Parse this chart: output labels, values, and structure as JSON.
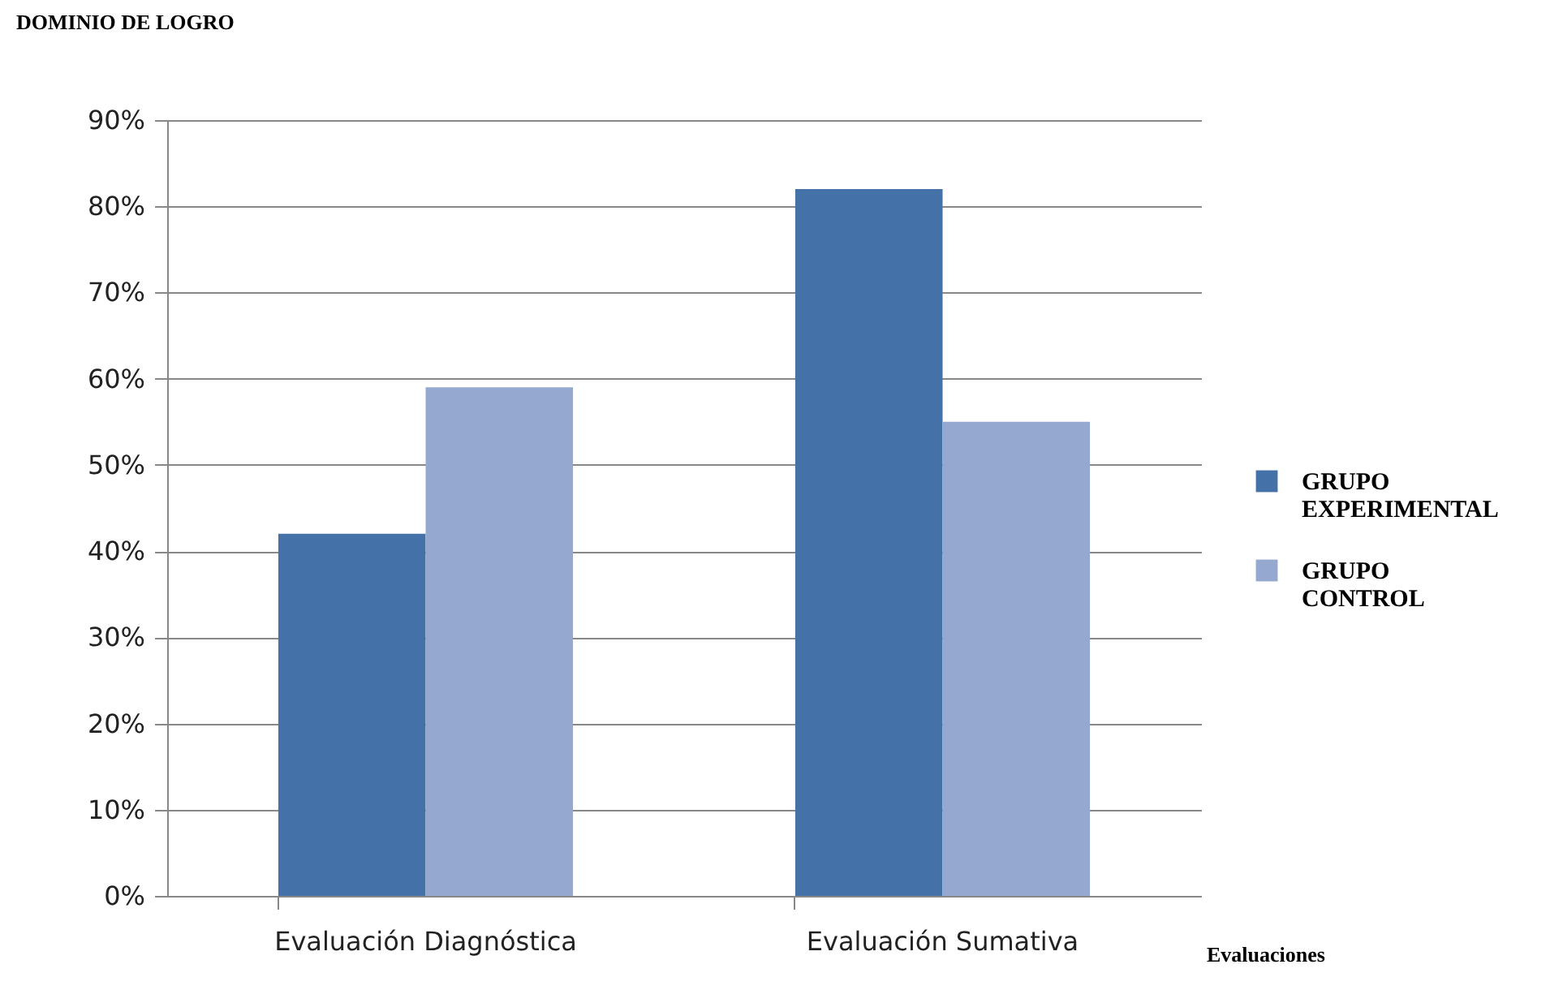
{
  "chart_data": {
    "type": "bar",
    "title": "DOMINIO DE LOGRO",
    "xlabel": "Evaluaciones",
    "categories": [
      "Evaluación Diagnóstica",
      "Evaluación Sumativa"
    ],
    "series": [
      {
        "name": "GRUPO EXPERIMENTAL",
        "color": "#4472a8",
        "values": [
          42,
          82
        ]
      },
      {
        "name": "GRUPO CONTROL",
        "color": "#95a9d0",
        "values": [
          59,
          55
        ]
      }
    ],
    "ylim": [
      0,
      90
    ],
    "yticks": [
      {
        "value": 0,
        "label": "0%"
      },
      {
        "value": 10,
        "label": "10%"
      },
      {
        "value": 20,
        "label": "20%"
      },
      {
        "value": 30,
        "label": "30%"
      },
      {
        "value": 40,
        "label": "40%"
      },
      {
        "value": 50,
        "label": "50%"
      },
      {
        "value": 60,
        "label": "60%"
      },
      {
        "value": 70,
        "label": "70%"
      },
      {
        "value": 80,
        "label": "80%"
      },
      {
        "value": 90,
        "label": "90%"
      }
    ],
    "grid": "y",
    "legend": "right"
  }
}
